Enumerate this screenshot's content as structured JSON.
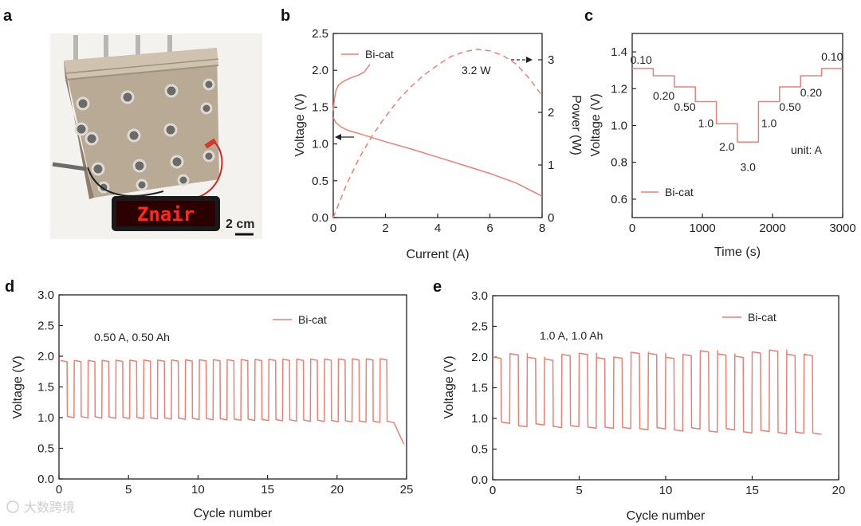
{
  "colors": {
    "series": "#ee7f72",
    "axis": "#222222"
  },
  "panels": {
    "a": {
      "label": "a",
      "scale_bar": "2 cm",
      "led_text": "Znair"
    },
    "b": {
      "label": "b"
    },
    "c": {
      "label": "c"
    },
    "d": {
      "label": "d"
    },
    "e": {
      "label": "e"
    }
  },
  "chart_data": [
    {
      "id": "b",
      "type": "line",
      "xlabel": "Current (A)",
      "ylabel": "Voltage (V)",
      "y2label": "Power (W)",
      "xlim": [
        0,
        8
      ],
      "ylim": [
        0,
        2.5
      ],
      "y2lim": [
        0,
        3.5
      ],
      "xticks": [
        "0",
        "2",
        "4",
        "6",
        "8"
      ],
      "yticks": [
        "0.0",
        "0.5",
        "1.0",
        "1.5",
        "2.0",
        "2.5"
      ],
      "y2ticks": [
        "0",
        "1",
        "2",
        "3"
      ],
      "legend": "Bi-cat",
      "annotation": "3.2 W",
      "series": [
        {
          "name": "charge voltage",
          "axis": "left",
          "x": [
            0,
            0.05,
            0.1,
            0.2,
            0.35,
            0.5,
            0.7,
            1.0,
            1.2,
            1.4
          ],
          "y": [
            1.45,
            1.62,
            1.72,
            1.8,
            1.84,
            1.87,
            1.9,
            1.94,
            1.98,
            2.08
          ]
        },
        {
          "name": "discharge voltage",
          "axis": "left",
          "x": [
            0,
            0.1,
            0.3,
            0.6,
            1.0,
            2.0,
            3.0,
            4.0,
            5.0,
            6.0,
            7.0,
            8.0
          ],
          "y": [
            1.36,
            1.29,
            1.23,
            1.18,
            1.14,
            1.03,
            0.93,
            0.82,
            0.71,
            0.6,
            0.47,
            0.29
          ]
        },
        {
          "name": "power density",
          "axis": "right",
          "dashed": true,
          "x": [
            0,
            0.5,
            1,
            1.5,
            2,
            2.5,
            3,
            3.5,
            4,
            4.5,
            5,
            5.5,
            6,
            6.5,
            7,
            7.5,
            8
          ],
          "y": [
            0,
            0.62,
            1.14,
            1.56,
            1.92,
            2.24,
            2.5,
            2.72,
            2.9,
            3.06,
            3.15,
            3.2,
            3.17,
            3.08,
            2.92,
            2.65,
            2.32
          ]
        }
      ]
    },
    {
      "id": "c",
      "type": "line",
      "xlabel": "Time (s)",
      "ylabel": "Voltage (V)",
      "xlim": [
        0,
        3000
      ],
      "ylim": [
        0.5,
        1.5
      ],
      "xticks": [
        "0",
        "1000",
        "2000",
        "3000"
      ],
      "yticks": [
        "0.6",
        "0.8",
        "1.0",
        "1.2",
        "1.4"
      ],
      "legend": "Bi-cat",
      "unit_note": "unit: A",
      "steps": [
        {
          "t0": 0,
          "t1": 300,
          "v": 1.31,
          "label": "0.10"
        },
        {
          "t0": 300,
          "t1": 600,
          "v": 1.27,
          "label": "0.20"
        },
        {
          "t0": 600,
          "t1": 900,
          "v": 1.21,
          "label": "0.50"
        },
        {
          "t0": 900,
          "t1": 1200,
          "v": 1.13,
          "label": "1.0"
        },
        {
          "t0": 1200,
          "t1": 1500,
          "v": 1.01,
          "label": "2.0"
        },
        {
          "t0": 1500,
          "t1": 1800,
          "v": 0.91,
          "label": "3.0"
        },
        {
          "t0": 1800,
          "t1": 2100,
          "v": 1.13,
          "label": "1.0"
        },
        {
          "t0": 2100,
          "t1": 2400,
          "v": 1.21,
          "label": "0.50"
        },
        {
          "t0": 2400,
          "t1": 2700,
          "v": 1.27,
          "label": "0.20"
        },
        {
          "t0": 2700,
          "t1": 3000,
          "v": 1.31,
          "label": "0.10"
        }
      ]
    },
    {
      "id": "d",
      "type": "line",
      "xlabel": "Cycle number",
      "ylabel": "Voltage (V)",
      "xlim": [
        0,
        25
      ],
      "ylim": [
        0,
        3.0
      ],
      "xticks": [
        "0",
        "5",
        "10",
        "15",
        "20",
        "25"
      ],
      "yticks": [
        "0.0",
        "0.5",
        "1.0",
        "1.5",
        "2.0",
        "2.5",
        "3.0"
      ],
      "legend": "Bi-cat",
      "condition": "0.50 A, 0.50 Ah",
      "cycles": 24,
      "x_start": 0.1,
      "period": 1.0,
      "charge_v": [
        1.93,
        1.96
      ],
      "discharge_v": [
        1.0,
        0.92
      ],
      "end": {
        "x": 24.8,
        "v": 0.57
      }
    },
    {
      "id": "e",
      "type": "line",
      "xlabel": "Cycle number",
      "ylabel": "Voltage (V)",
      "xlim": [
        0,
        20
      ],
      "ylim": [
        0,
        3.0
      ],
      "xticks": [
        "0",
        "5",
        "10",
        "15",
        "20"
      ],
      "yticks": [
        "0.0",
        "0.5",
        "1.0",
        "1.5",
        "2.0",
        "2.5",
        "3.0"
      ],
      "legend": "Bi-cat",
      "condition": "1.0 A, 1.0 Ah",
      "cycles": 19,
      "x_start": 0.0,
      "period": 1.0,
      "charge_v": [
        2.0,
        2.08
      ],
      "discharge_v": [
        0.92,
        0.78
      ],
      "end": {
        "x": 19.0,
        "v": 0.75
      }
    }
  ],
  "watermark": "大数跨境"
}
